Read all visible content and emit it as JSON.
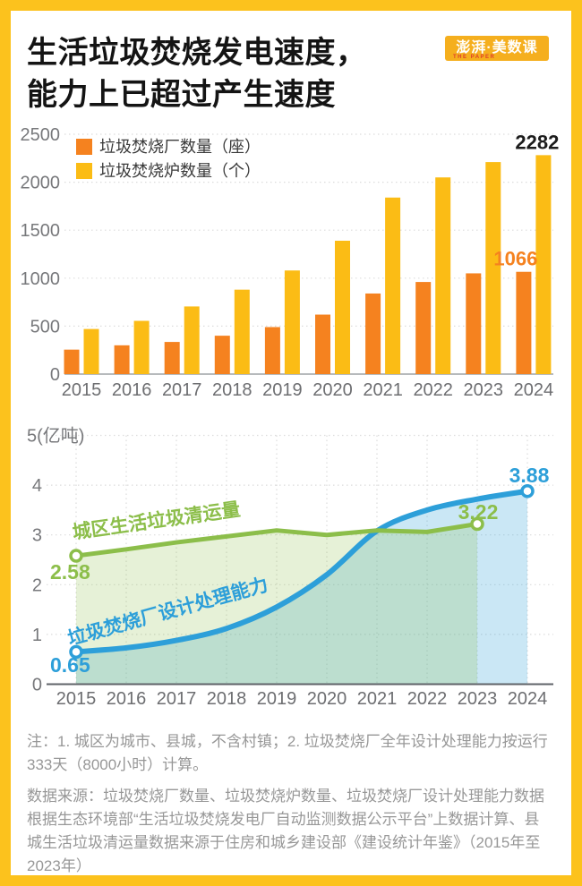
{
  "frame_color": "#FCC21D",
  "header": {
    "title_line1": "生活垃圾焚烧发电速度，",
    "title_line2": "能力上已超过产生速度",
    "logo": {
      "text": "澎湃·美数课",
      "subtext": "THE PAPER",
      "bg": "#F5AF1E",
      "fg": "#FFFFFF"
    }
  },
  "chart_data": [
    {
      "type": "bar",
      "title": "",
      "categories": [
        "2015",
        "2016",
        "2017",
        "2018",
        "2019",
        "2020",
        "2021",
        "2022",
        "2023",
        "2024"
      ],
      "series": [
        {
          "name": "垃圾焚烧厂数量（座）",
          "color": "#F5821F",
          "values": [
            255,
            300,
            335,
            400,
            490,
            620,
            840,
            960,
            1050,
            1066
          ]
        },
        {
          "name": "垃圾焚烧炉数量（个）",
          "color": "#FBBC15",
          "values": [
            470,
            555,
            705,
            880,
            1080,
            1390,
            1840,
            2050,
            2210,
            2282
          ]
        }
      ],
      "ylim": [
        0,
        2500
      ],
      "yticks": [
        0,
        500,
        1000,
        1500,
        2000,
        2500
      ],
      "grid": "horizontal-dotted",
      "legend_position": "top-left-inside",
      "annotations": [
        {
          "text": "1066",
          "series": 0,
          "category": "2024",
          "color": "#F5821F"
        },
        {
          "text": "2282",
          "series": 1,
          "category": "2024",
          "color": "#1C1C1C"
        }
      ]
    },
    {
      "type": "line",
      "title": "",
      "x": [
        "2015",
        "2016",
        "2017",
        "2018",
        "2019",
        "2020",
        "2021",
        "2022",
        "2023",
        "2024"
      ],
      "ylabel_top": "5(亿吨)",
      "unit": "亿吨",
      "ylim": [
        0,
        5
      ],
      "yticks": [
        0,
        1,
        2,
        3,
        4,
        5
      ],
      "grid": "both-dotted",
      "series": [
        {
          "name": "城区生活垃圾清运量",
          "color": "#8CBE4A",
          "fill": "rgba(140,190,74,0.22)",
          "smooth": false,
          "values": [
            2.58,
            2.71,
            2.85,
            2.97,
            3.09,
            3.0,
            3.09,
            3.06,
            3.22
          ],
          "first_label": "2.58",
          "last_label": "3.22"
        },
        {
          "name": "垃圾焚烧厂设计处理能力",
          "color": "#2D9FD9",
          "fill": "rgba(45,159,217,0.25)",
          "smooth": true,
          "values": [
            0.65,
            0.73,
            0.88,
            1.12,
            1.55,
            2.2,
            3.08,
            3.5,
            3.72,
            3.88
          ],
          "first_label": "0.65",
          "last_label": "3.88"
        }
      ]
    }
  ],
  "notes": {
    "note1": "注：1. 城区为城市、县城，不含村镇；2. 垃圾焚烧厂全年设计处理能力按运行333天（8000小时）计算。",
    "source": "数据来源：垃圾焚烧厂数量、垃圾焚烧炉数量、垃圾焚烧厂设计处理能力数据根据生态环境部“生活垃圾焚烧发电厂自动监测数据公示平台”上数据计算、县城生活垃圾清运量数据来源于住房和城乡建设部《建设统计年鉴》（2015年至2023年）"
  }
}
